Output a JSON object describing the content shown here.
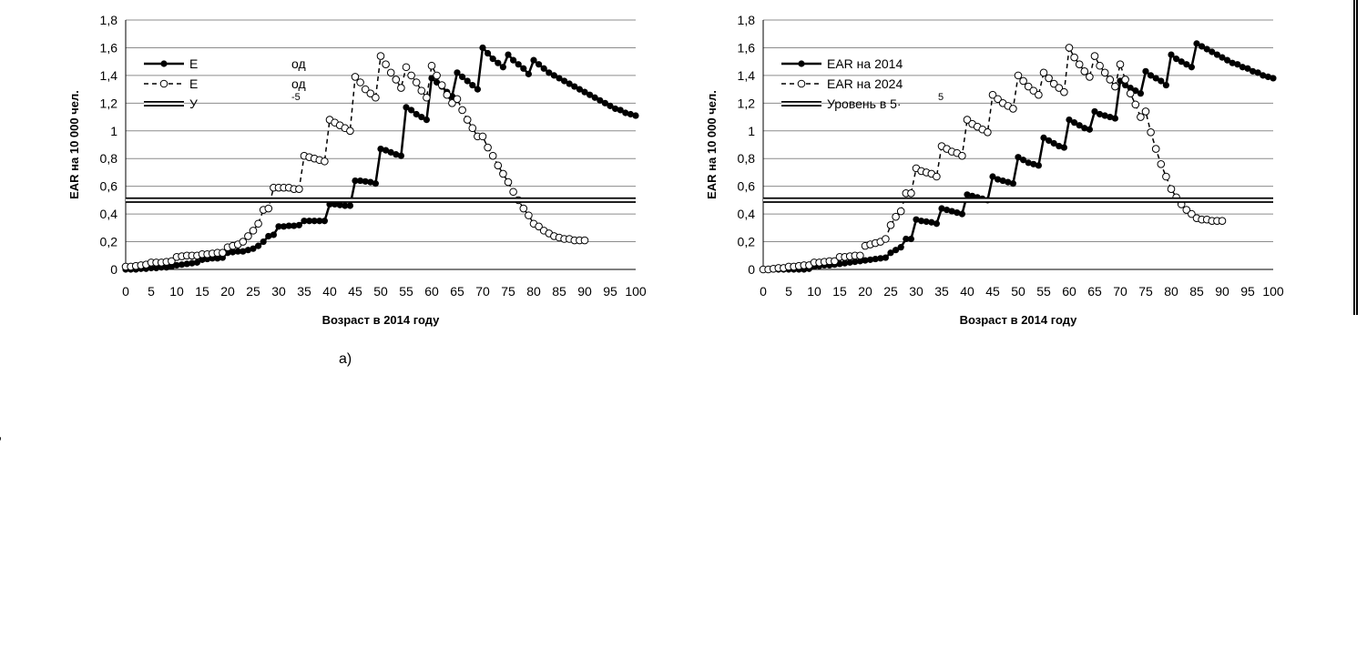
{
  "caption": "а)",
  "side_glyph": "[1",
  "chart_data": [
    {
      "type": "line",
      "title": "",
      "xlabel": "Возраст в 2014 году",
      "ylabel": "EAR на 10 000 чел.",
      "xlim": [
        0,
        100
      ],
      "ylim": [
        0,
        1.8
      ],
      "xticks": [
        0,
        5,
        10,
        15,
        20,
        25,
        30,
        35,
        40,
        45,
        50,
        55,
        60,
        65,
        70,
        75,
        80,
        85,
        90,
        95,
        100
      ],
      "yticks": [
        "0",
        "0,2",
        "0,4",
        "0,6",
        "0,8",
        "1",
        "1,2",
        "1,4",
        "1,6",
        "1,8"
      ],
      "grid": "horizontal",
      "legend_position": "top-left",
      "legend_entries": [
        "Е",
        "Е",
        "У"
      ],
      "legend_suffixes": [
        "од",
        "од",
        "-5"
      ],
      "series": [
        {
          "name": "",
          "style": "solid-filled-markers",
          "x": [
            0,
            1,
            2,
            3,
            4,
            5,
            6,
            7,
            8,
            9,
            10,
            11,
            12,
            13,
            14,
            15,
            16,
            17,
            18,
            19,
            20,
            21,
            22,
            23,
            24,
            25,
            26,
            27,
            28,
            29,
            30,
            31,
            32,
            33,
            34,
            35,
            36,
            37,
            38,
            39,
            40,
            41,
            42,
            43,
            44,
            45,
            46,
            47,
            48,
            49,
            50,
            51,
            52,
            53,
            54,
            55,
            56,
            57,
            58,
            59,
            60,
            61,
            62,
            63,
            64,
            65,
            66,
            67,
            68,
            69,
            70,
            71,
            72,
            73,
            74,
            75,
            76,
            77,
            78,
            79,
            80,
            81,
            82,
            83,
            84,
            85,
            86,
            87,
            88,
            89,
            90,
            91,
            92,
            93,
            94,
            95,
            96,
            97,
            98,
            99,
            100
          ],
          "y": [
            0,
            0,
            0,
            0.005,
            0.005,
            0.01,
            0.01,
            0.015,
            0.015,
            0.02,
            0.03,
            0.035,
            0.04,
            0.045,
            0.05,
            0.07,
            0.075,
            0.08,
            0.08,
            0.085,
            0.12,
            0.125,
            0.13,
            0.13,
            0.14,
            0.15,
            0.17,
            0.2,
            0.24,
            0.25,
            0.31,
            0.31,
            0.315,
            0.315,
            0.32,
            0.35,
            0.35,
            0.35,
            0.35,
            0.35,
            0.47,
            0.47,
            0.465,
            0.46,
            0.46,
            0.64,
            0.64,
            0.635,
            0.63,
            0.62,
            0.87,
            0.86,
            0.845,
            0.83,
            0.82,
            1.17,
            1.15,
            1.12,
            1.1,
            1.08,
            1.38,
            1.35,
            1.32,
            1.28,
            1.25,
            1.42,
            1.39,
            1.36,
            1.33,
            1.3,
            1.6,
            1.56,
            1.52,
            1.49,
            1.46,
            1.55,
            1.51,
            1.48,
            1.45,
            1.41,
            1.51,
            1.48,
            1.45,
            1.42,
            1.4,
            1.38,
            1.36,
            1.34,
            1.32,
            1.3,
            1.28,
            1.26,
            1.24,
            1.22,
            1.2,
            1.18,
            1.16,
            1.15,
            1.13,
            1.12,
            1.11
          ]
        },
        {
          "name": "",
          "style": "dashed-open-markers",
          "x": [
            0,
            1,
            2,
            3,
            4,
            5,
            6,
            7,
            8,
            9,
            10,
            11,
            12,
            13,
            14,
            15,
            16,
            17,
            18,
            19,
            20,
            21,
            22,
            23,
            24,
            25,
            26,
            27,
            28,
            29,
            30,
            31,
            32,
            33,
            34,
            35,
            36,
            37,
            38,
            39,
            40,
            41,
            42,
            43,
            44,
            45,
            46,
            47,
            48,
            49,
            50,
            51,
            52,
            53,
            54,
            55,
            56,
            57,
            58,
            59,
            60,
            61,
            62,
            63,
            64,
            65,
            66,
            67,
            68,
            69,
            70,
            71,
            72,
            73,
            74,
            75,
            76,
            77,
            78,
            79,
            80,
            81,
            82,
            83,
            84,
            85,
            86,
            87,
            88,
            89,
            90
          ],
          "y": [
            0.02,
            0.02,
            0.025,
            0.03,
            0.035,
            0.05,
            0.05,
            0.05,
            0.055,
            0.06,
            0.09,
            0.095,
            0.1,
            0.1,
            0.1,
            0.11,
            0.11,
            0.115,
            0.12,
            0.12,
            0.16,
            0.17,
            0.18,
            0.2,
            0.24,
            0.28,
            0.33,
            0.43,
            0.44,
            0.59,
            0.59,
            0.59,
            0.59,
            0.58,
            0.58,
            0.82,
            0.81,
            0.8,
            0.79,
            0.78,
            1.08,
            1.06,
            1.04,
            1.02,
            1.0,
            1.39,
            1.35,
            1.3,
            1.27,
            1.24,
            1.54,
            1.48,
            1.42,
            1.37,
            1.31,
            1.46,
            1.4,
            1.35,
            1.29,
            1.24,
            1.47,
            1.4,
            1.33,
            1.26,
            1.2,
            1.23,
            1.15,
            1.08,
            1.02,
            0.96,
            0.96,
            0.88,
            0.82,
            0.75,
            0.69,
            0.63,
            0.56,
            0.5,
            0.44,
            0.39,
            0.33,
            0.31,
            0.28,
            0.26,
            0.24,
            0.23,
            0.22,
            0.22,
            0.21,
            0.21,
            0.21
          ]
        },
        {
          "name": "",
          "style": "double-line",
          "x": [
            0,
            100
          ],
          "y": [
            0.5,
            0.5
          ]
        }
      ]
    },
    {
      "type": "line",
      "title": "",
      "xlabel": "Возраст в 2014 году",
      "ylabel": "EAR на 10 000 чел.",
      "xlim": [
        0,
        100
      ],
      "ylim": [
        0,
        1.8
      ],
      "xticks": [
        0,
        5,
        10,
        15,
        20,
        25,
        30,
        35,
        40,
        45,
        50,
        55,
        60,
        65,
        70,
        75,
        80,
        85,
        90,
        95,
        100
      ],
      "yticks": [
        "0",
        "0,2",
        "0,4",
        "0,6",
        "0,8",
        "1",
        "1,2",
        "1,4",
        "1,6",
        "1,8"
      ],
      "grid": "horizontal",
      "legend_position": "top-left",
      "legend_entries": [
        "EAR на 2014",
        "EAR на 2024",
        "Уровень в 5·"
      ],
      "legend_suffixes": [
        "",
        "",
        "5"
      ],
      "series": [
        {
          "name": "EAR на 2014",
          "style": "solid-filled-markers",
          "x": [
            0,
            1,
            2,
            3,
            4,
            5,
            6,
            7,
            8,
            9,
            10,
            11,
            12,
            13,
            14,
            15,
            16,
            17,
            18,
            19,
            20,
            21,
            22,
            23,
            24,
            25,
            26,
            27,
            28,
            29,
            30,
            31,
            32,
            33,
            34,
            35,
            36,
            37,
            38,
            39,
            40,
            41,
            42,
            43,
            44,
            45,
            46,
            47,
            48,
            49,
            50,
            51,
            52,
            53,
            54,
            55,
            56,
            57,
            58,
            59,
            60,
            61,
            62,
            63,
            64,
            65,
            66,
            67,
            68,
            69,
            70,
            71,
            72,
            73,
            74,
            75,
            76,
            77,
            78,
            79,
            80,
            81,
            82,
            83,
            84,
            85,
            86,
            87,
            88,
            89,
            90,
            91,
            92,
            93,
            94,
            95,
            96,
            97,
            98,
            99,
            100
          ],
          "y": [
            0,
            0,
            0,
            0,
            0,
            0,
            0,
            0,
            0,
            0.005,
            0.02,
            0.025,
            0.03,
            0.03,
            0.035,
            0.04,
            0.045,
            0.05,
            0.055,
            0.06,
            0.065,
            0.07,
            0.075,
            0.08,
            0.085,
            0.12,
            0.14,
            0.16,
            0.22,
            0.22,
            0.36,
            0.35,
            0.345,
            0.34,
            0.33,
            0.44,
            0.43,
            0.42,
            0.41,
            0.4,
            0.54,
            0.53,
            0.52,
            0.51,
            0.5,
            0.67,
            0.65,
            0.64,
            0.63,
            0.62,
            0.81,
            0.79,
            0.77,
            0.76,
            0.75,
            0.95,
            0.93,
            0.91,
            0.89,
            0.88,
            1.08,
            1.06,
            1.04,
            1.02,
            1.01,
            1.14,
            1.12,
            1.11,
            1.1,
            1.09,
            1.36,
            1.33,
            1.31,
            1.29,
            1.27,
            1.43,
            1.4,
            1.38,
            1.36,
            1.33,
            1.55,
            1.52,
            1.5,
            1.48,
            1.46,
            1.63,
            1.61,
            1.59,
            1.57,
            1.55,
            1.53,
            1.51,
            1.49,
            1.48,
            1.46,
            1.45,
            1.43,
            1.42,
            1.4,
            1.39,
            1.38
          ]
        },
        {
          "name": "EAR на 2024",
          "style": "dashed-open-markers",
          "x": [
            0,
            1,
            2,
            3,
            4,
            5,
            6,
            7,
            8,
            9,
            10,
            11,
            12,
            13,
            14,
            15,
            16,
            17,
            18,
            19,
            20,
            21,
            22,
            23,
            24,
            25,
            26,
            27,
            28,
            29,
            30,
            31,
            32,
            33,
            34,
            35,
            36,
            37,
            38,
            39,
            40,
            41,
            42,
            43,
            44,
            45,
            46,
            47,
            48,
            49,
            50,
            51,
            52,
            53,
            54,
            55,
            56,
            57,
            58,
            59,
            60,
            61,
            62,
            63,
            64,
            65,
            66,
            67,
            68,
            69,
            70,
            71,
            72,
            73,
            74,
            75,
            76,
            77,
            78,
            79,
            80,
            81,
            82,
            83,
            84,
            85,
            86,
            87,
            88,
            89,
            90
          ],
          "y": [
            0,
            0,
            0.005,
            0.01,
            0.01,
            0.02,
            0.02,
            0.025,
            0.03,
            0.03,
            0.05,
            0.05,
            0.055,
            0.06,
            0.06,
            0.09,
            0.09,
            0.095,
            0.1,
            0.1,
            0.17,
            0.18,
            0.19,
            0.2,
            0.22,
            0.32,
            0.38,
            0.42,
            0.55,
            0.55,
            0.73,
            0.71,
            0.7,
            0.69,
            0.67,
            0.89,
            0.87,
            0.85,
            0.84,
            0.82,
            1.08,
            1.05,
            1.03,
            1.01,
            0.99,
            1.26,
            1.23,
            1.2,
            1.18,
            1.16,
            1.4,
            1.36,
            1.32,
            1.29,
            1.26,
            1.42,
            1.38,
            1.34,
            1.31,
            1.28,
            1.6,
            1.53,
            1.48,
            1.43,
            1.39,
            1.54,
            1.47,
            1.42,
            1.37,
            1.32,
            1.48,
            1.37,
            1.27,
            1.19,
            1.1,
            1.14,
            0.99,
            0.87,
            0.76,
            0.67,
            0.58,
            0.52,
            0.47,
            0.43,
            0.4,
            0.37,
            0.36,
            0.36,
            0.35,
            0.35,
            0.35
          ]
        },
        {
          "name": "",
          "style": "double-line",
          "x": [
            0,
            100
          ],
          "y": [
            0.5,
            0.5
          ]
        }
      ]
    }
  ]
}
